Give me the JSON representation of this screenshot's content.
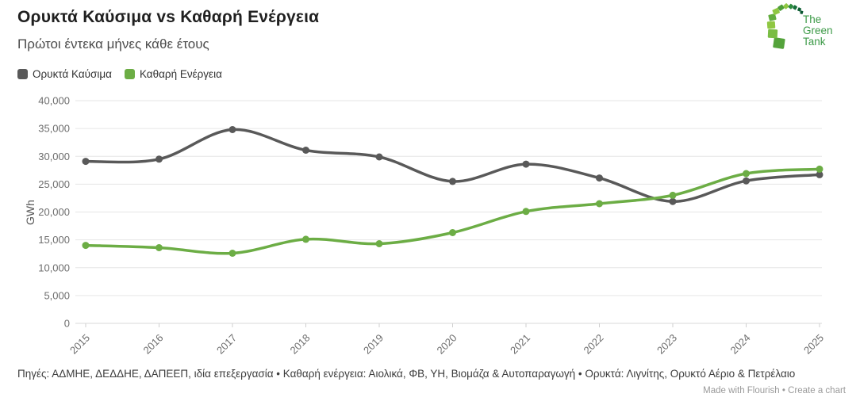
{
  "header": {
    "title": "Ορυκτά Καύσιμα vs Καθαρή Ενέργεια",
    "subtitle": "Πρώτοι έντεκα μήνες κάθε έτους",
    "logo": {
      "name": "The Green Tank",
      "lines": [
        "The",
        "Green",
        "Tank"
      ]
    }
  },
  "legend": [
    {
      "label": "Ορυκτά Καύσιμα",
      "color": "#595959"
    },
    {
      "label": "Καθαρή Ενέργεια",
      "color": "#6cad45"
    }
  ],
  "chart_data": {
    "type": "line",
    "x": [
      "2015",
      "2016",
      "2017",
      "2018",
      "2019",
      "2020",
      "2021",
      "2022",
      "2023",
      "2024",
      "2025"
    ],
    "series": [
      {
        "name": "Ορυκτά Καύσιμα",
        "color": "#595959",
        "values": [
          29100,
          29500,
          34800,
          31100,
          29900,
          25500,
          28600,
          26100,
          21900,
          25600,
          26700
        ]
      },
      {
        "name": "Καθαρή Ενέργεια",
        "color": "#6cad45",
        "values": [
          14000,
          13600,
          12600,
          15100,
          14300,
          16300,
          20100,
          21500,
          23000,
          26900,
          27700
        ]
      }
    ],
    "title": "Ορυκτά Καύσιμα vs Καθαρή Ενέργεια",
    "subtitle": "Πρώτοι έντεκα μήνες κάθε έτους",
    "xlabel": "",
    "ylabel": "GWh",
    "ylim": [
      0,
      40000
    ],
    "ytick_step": 5000,
    "grid": "horizontal",
    "legend_position": "top-left",
    "curve": "smooth"
  },
  "colors": {
    "gridline": "#e6e6e6",
    "baseline": "#d9d9d9",
    "tick": "#cfcfcf",
    "axis_text": "#6e6e6e",
    "ylabel_text": "#555555"
  },
  "footer": {
    "sources": "Πηγές: ΑΔΜΗΕ, ΔΕΔΔΗΕ, ΔΑΠΕΕΠ, ιδία επεξεργασία • Καθαρή ενέργεια: Αιολικά, ΦΒ, ΥΗ, Βιομάζα & Αυτοπαραγωγή • Ορυκτά: Λιγνίτης, Ορυκτό Αέριο & Πετρέλαιο",
    "credit": {
      "made_with": "Made with Flourish",
      "separator": "•",
      "create": "Create a chart"
    }
  }
}
